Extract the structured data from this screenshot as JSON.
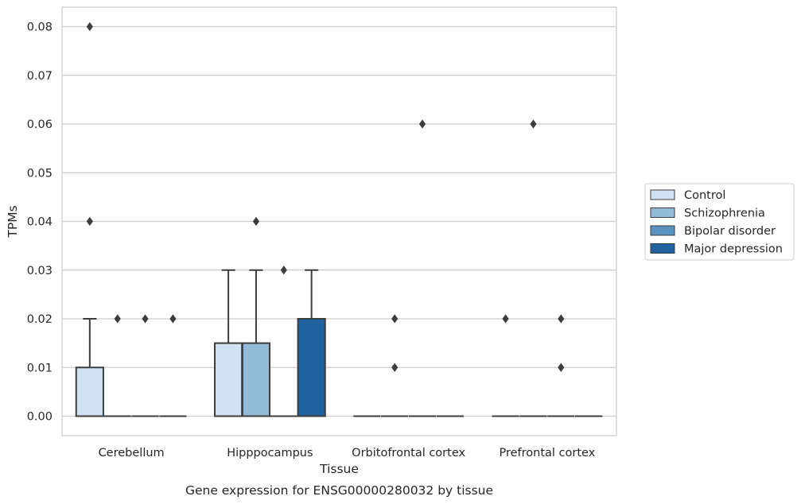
{
  "chart_data": {
    "type": "box",
    "caption": "Gene expression for ENSG00000280032 by tissue",
    "xlabel": "Tissue",
    "ylabel": "TPMs",
    "ylim": [
      -0.004,
      0.084
    ],
    "yticks": [
      "0.00",
      "0.01",
      "0.02",
      "0.03",
      "0.04",
      "0.05",
      "0.06",
      "0.07",
      "0.08"
    ],
    "grid": "horizontal",
    "legend_position": "right",
    "categories": [
      "Cerebellum",
      "Hipppocampus",
      "Orbitofrontal cortex",
      "Prefrontal cortex"
    ],
    "series": [
      {
        "name": "Control",
        "color": "#cfe1f2",
        "boxes": [
          {
            "q1": 0,
            "median": 0,
            "q3": 0.01,
            "whisker_low": 0,
            "whisker_high": 0.02,
            "outliers": [
              0.04,
              0.08
            ]
          },
          {
            "q1": 0,
            "median": 0,
            "q3": 0.015,
            "whisker_low": 0,
            "whisker_high": 0.03,
            "outliers": []
          },
          {
            "q1": 0,
            "median": 0,
            "q3": 0,
            "whisker_low": 0,
            "whisker_high": 0,
            "outliers": []
          },
          {
            "q1": 0,
            "median": 0,
            "q3": 0,
            "whisker_low": 0,
            "whisker_high": 0,
            "outliers": [
              0.02
            ]
          }
        ]
      },
      {
        "name": "Schizophrenia",
        "color": "#93bbd7",
        "boxes": [
          {
            "q1": 0,
            "median": 0,
            "q3": 0,
            "whisker_low": 0,
            "whisker_high": 0,
            "outliers": [
              0.02
            ]
          },
          {
            "q1": 0,
            "median": 0,
            "q3": 0.015,
            "whisker_low": 0,
            "whisker_high": 0.03,
            "outliers": [
              0.04
            ]
          },
          {
            "q1": 0,
            "median": 0,
            "q3": 0,
            "whisker_low": 0,
            "whisker_high": 0,
            "outliers": [
              0.01,
              0.02
            ]
          },
          {
            "q1": 0,
            "median": 0,
            "q3": 0,
            "whisker_low": 0,
            "whisker_high": 0,
            "outliers": [
              0.06
            ]
          }
        ]
      },
      {
        "name": "Bipolar disorder",
        "color": "#5a92bf",
        "boxes": [
          {
            "q1": 0,
            "median": 0,
            "q3": 0,
            "whisker_low": 0,
            "whisker_high": 0,
            "outliers": [
              0.02
            ]
          },
          {
            "q1": 0,
            "median": 0,
            "q3": 0,
            "whisker_low": 0,
            "whisker_high": 0,
            "outliers": [
              0.03
            ]
          },
          {
            "q1": 0,
            "median": 0,
            "q3": 0,
            "whisker_low": 0,
            "whisker_high": 0,
            "outliers": [
              0.06
            ]
          },
          {
            "q1": 0,
            "median": 0,
            "q3": 0,
            "whisker_low": 0,
            "whisker_high": 0,
            "outliers": [
              0.01,
              0.02
            ]
          }
        ]
      },
      {
        "name": "Major depression",
        "color": "#2162a0",
        "boxes": [
          {
            "q1": 0,
            "median": 0,
            "q3": 0,
            "whisker_low": 0,
            "whisker_high": 0,
            "outliers": [
              0.02
            ]
          },
          {
            "q1": 0,
            "median": 0,
            "q3": 0.02,
            "whisker_low": 0,
            "whisker_high": 0.03,
            "outliers": []
          },
          {
            "q1": 0,
            "median": 0,
            "q3": 0,
            "whisker_low": 0,
            "whisker_high": 0,
            "outliers": []
          },
          {
            "q1": 0,
            "median": 0,
            "q3": 0,
            "whisker_low": 0,
            "whisker_high": 0,
            "outliers": []
          }
        ]
      }
    ]
  }
}
